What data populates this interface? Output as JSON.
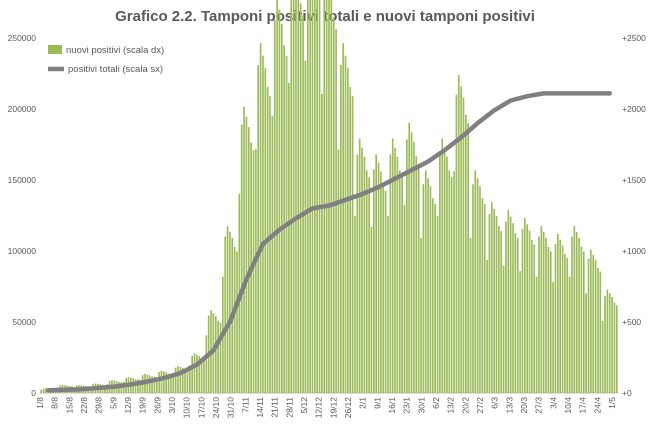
{
  "chart_data": {
    "type": "bar+line",
    "title": "Grafico 2.2. Tamponi positivi totali e nuovi tamponi positivi",
    "y_left": {
      "ticks": [
        0,
        50000,
        100000,
        150000,
        200000,
        250000
      ],
      "tick_labels": [
        "0",
        "50000",
        "100000",
        "150000",
        "200000",
        "250000"
      ],
      "lim": [
        0,
        250000
      ]
    },
    "y_right": {
      "ticks": [
        0,
        500,
        1000,
        1500,
        2000,
        2500
      ],
      "tick_labels": [
        "+0",
        "+500",
        "+1000",
        "+1500",
        "+2000",
        "+2500"
      ],
      "lim": [
        0,
        2500
      ]
    },
    "x_tick_labels": [
      "1/8",
      "8/8",
      "15/8",
      "22/8",
      "29/8",
      "5/9",
      "12/9",
      "19/9",
      "26/9",
      "3/10",
      "10/10",
      "17/10",
      "24/10",
      "31/10",
      "7/11",
      "14/11",
      "21/11",
      "28/11",
      "5/12",
      "12/12",
      "19/12",
      "26/12",
      "2/1",
      "9/1",
      "16/1",
      "23/1",
      "30/1",
      "6/2",
      "13/2",
      "20/2",
      "27/2",
      "6/3",
      "13/3",
      "20/3",
      "27/3",
      "3/4",
      "10/4",
      "17/4",
      "24/4",
      "1/5"
    ],
    "legend": [
      {
        "name": "nuovi positivi (scala dx)",
        "color": "#9BBB59"
      },
      {
        "name": "positivi totali (scala sx)",
        "color": "#808080"
      }
    ],
    "grid": false,
    "legend_position": "top-left",
    "series": [
      {
        "name": "nuovi positivi (scala dx)",
        "type": "bar",
        "axis": "right",
        "color": "#9BBB59",
        "weekly_values": [
          30,
          50,
          50,
          60,
          80,
          100,
          120,
          140,
          170,
          250,
          520,
          1050,
          1800,
          2200,
          2500,
          2800,
          3000,
          2700,
          2200,
          1600,
          1500,
          1600,
          1700,
          1400,
          1600,
          2000,
          1400,
          1200,
          1150,
          1100,
          1050,
          1000,
          1050,
          900,
          650
        ]
      },
      {
        "name": "positivi totali (scala sx)",
        "type": "line",
        "axis": "left",
        "color": "#808080",
        "weekly_values": [
          2000,
          2300,
          2700,
          3500,
          4500,
          6000,
          8000,
          10500,
          14000,
          20000,
          30000,
          50000,
          80000,
          105000,
          115000,
          123000,
          130000,
          132000,
          136000,
          140000,
          145000,
          151000,
          157000,
          163000,
          171000,
          180000,
          190000,
          199000,
          206000,
          209000,
          211000,
          211000,
          211000,
          211000,
          211000
        ]
      }
    ]
  }
}
